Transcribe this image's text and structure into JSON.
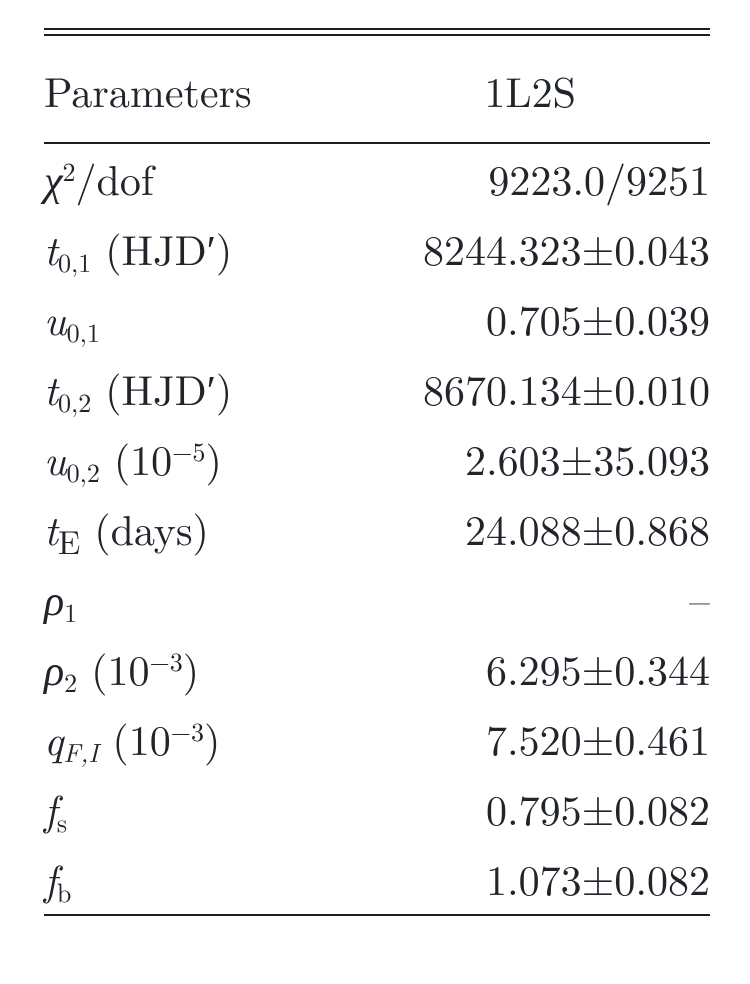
{
  "table": {
    "header": {
      "param_label": "Parameters",
      "col_label": "1L2S"
    },
    "font_size_pt": 32,
    "row_font_size_pt": 32,
    "text_color": "#20242b",
    "rule_color": "#1b1e25",
    "background_color": "#ffffff",
    "column_alignment": [
      "left",
      "right"
    ],
    "rows": [
      {
        "value": "9223.0/9251"
      },
      {
        "value": "8244.323±0.043"
      },
      {
        "value": "0.705±0.039"
      },
      {
        "value": "8670.134±0.010"
      },
      {
        "value": "2.603±35.093"
      },
      {
        "value": "24.088±0.868"
      },
      {
        "value": "–"
      },
      {
        "value": "6.295±0.344"
      },
      {
        "value": "7.520±0.461"
      },
      {
        "value": "0.795±0.082"
      },
      {
        "value": "1.073±0.082"
      }
    ],
    "param_plain": {
      "chi2dof_chi": "χ",
      "chi2dof_sup": "2",
      "chi2dof_tail": "/dof",
      "t01_t": "t",
      "t01_sub": "0,1",
      "hjd": " (HJD′)",
      "u01_u": "u",
      "u01_sub": "0,1",
      "t02_t": "t",
      "t02_sub": "0,2",
      "u02_u": "u",
      "u02_sub": "0,2",
      "u02_unit_a": " (10",
      "u02_unit_sup": "−5",
      "u02_unit_b": ")",
      "tE_t": "t",
      "tE_sub": "E",
      "tE_unit": " (days)",
      "rho1_r": "ρ",
      "rho1_sub": "1",
      "rho2_r": "ρ",
      "rho2_sub": "2",
      "rho2_unit_a": " (10",
      "rho2_unit_sup": "−3",
      "rho2_unit_b": ")",
      "qFI_q": "q",
      "qFI_sub": "F,I",
      "qFI_unit_a": " (10",
      "qFI_unit_sup": "−3",
      "qFI_unit_b": ")",
      "fs_f": "f",
      "fs_sub": "s",
      "fb_f": "f",
      "fb_sub": "b"
    }
  }
}
